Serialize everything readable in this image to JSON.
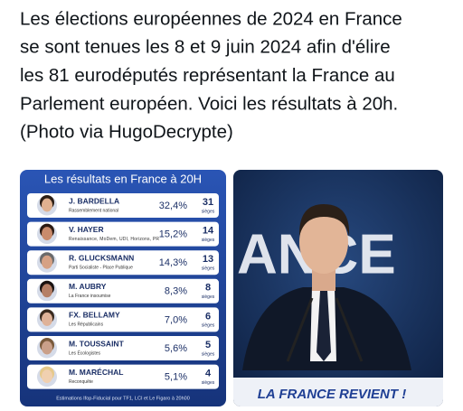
{
  "post": {
    "text_lines": [
      "Les élections européennes de 2024 en France",
      "se sont tenues les 8 et 9 juin 2024 afin d'élire",
      "les 81 eurodéputés représentant la France au",
      "Parlement européen. Voici les résultats à 20h.",
      "(Photo via HugoDecrypte)"
    ]
  },
  "results_card": {
    "title": "Les résultats en France à 20H",
    "seats_unit": "sièges",
    "rows": [
      {
        "name": "J. BARDELLA",
        "party": "Rassemblement national",
        "score": "32,4%",
        "seats": 31
      },
      {
        "name": "V. HAYER",
        "party": "Renaissance, MoDem, UDI, Horizons, PR",
        "score": "15,2%",
        "seats": 14
      },
      {
        "name": "R. GLUCKSMANN",
        "party": "Parti Socialiste - Place Publique",
        "score": "14,3%",
        "seats": 13
      },
      {
        "name": "M. AUBRY",
        "party": "La France insoumise",
        "score": "8,3%",
        "seats": 8
      },
      {
        "name": "FX. BELLAMY",
        "party": "Les Républicains",
        "score": "7,0%",
        "seats": 6
      },
      {
        "name": "M. TOUSSAINT",
        "party": "Les Écologistes",
        "score": "5,6%",
        "seats": 5
      },
      {
        "name": "M. MARÉCHAL",
        "party": "Reconquête",
        "score": "5,1%",
        "seats": 4
      }
    ],
    "footer": "Estimations Ifop-Fiducial pour TF1, LCI et Le Figaro à 20h00"
  },
  "photo": {
    "backdrop_text": "ANCE",
    "banner": "LA FRANCE REVIENT !"
  }
}
